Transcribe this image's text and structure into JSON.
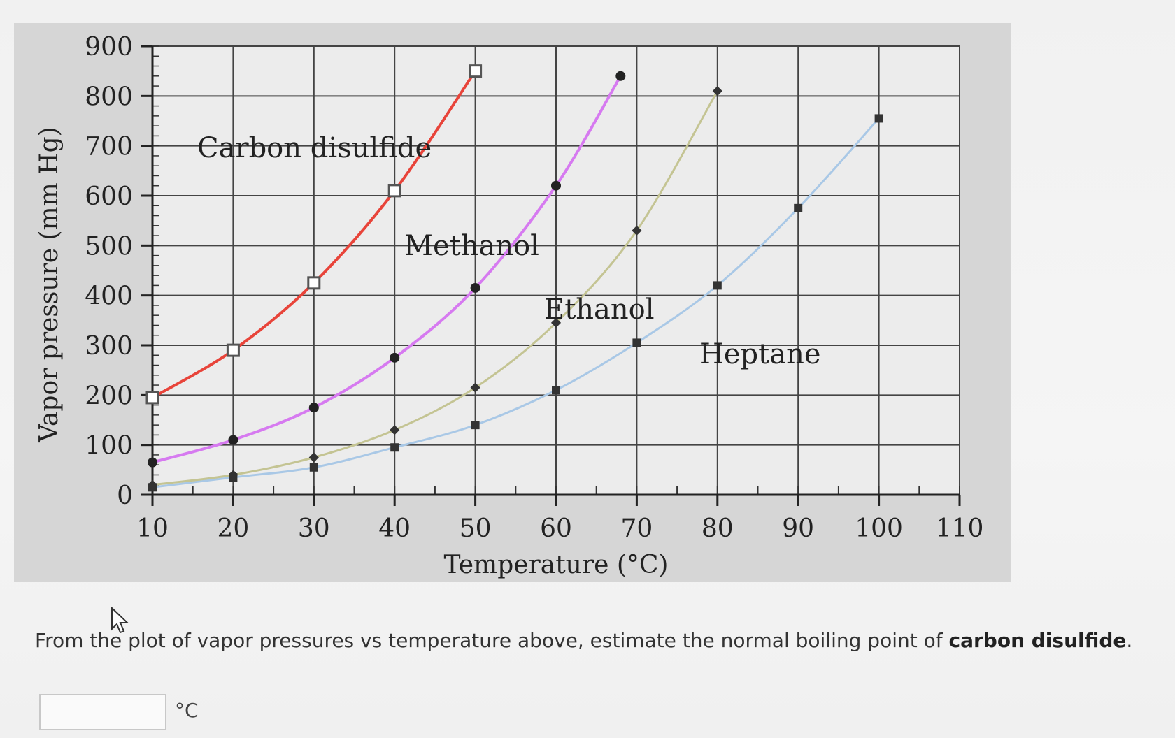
{
  "chart_data": {
    "type": "line",
    "xlabel": "Temperature (°C)",
    "ylabel": "Vapor pressure (mm Hg)",
    "xlim": [
      10,
      110
    ],
    "ylim": [
      0,
      900
    ],
    "x_ticks": [
      "10",
      "20",
      "30",
      "40",
      "50",
      "60",
      "70",
      "80",
      "90",
      "100",
      "110"
    ],
    "y_ticks": [
      "0",
      "100",
      "200",
      "300",
      "400",
      "500",
      "600",
      "700",
      "800",
      "900"
    ],
    "grid": true,
    "series": [
      {
        "name": "Carbon disulfide",
        "color": "#e8443a",
        "marker": "open-square",
        "points": [
          [
            10,
            195
          ],
          [
            20,
            290
          ],
          [
            30,
            425
          ],
          [
            40,
            610
          ],
          [
            50,
            850
          ]
        ]
      },
      {
        "name": "Methanol",
        "color": "#d67af0",
        "marker": "filled-circle",
        "points": [
          [
            10,
            65
          ],
          [
            20,
            110
          ],
          [
            30,
            175
          ],
          [
            40,
            275
          ],
          [
            50,
            415
          ],
          [
            60,
            620
          ],
          [
            68,
            840
          ]
        ]
      },
      {
        "name": "Ethanol",
        "color": "#c4c493",
        "marker": "filled-diamond",
        "points": [
          [
            10,
            20
          ],
          [
            20,
            40
          ],
          [
            30,
            75
          ],
          [
            40,
            130
          ],
          [
            50,
            215
          ],
          [
            60,
            345
          ],
          [
            70,
            530
          ],
          [
            80,
            810
          ]
        ]
      },
      {
        "name": "Heptane",
        "color": "#a9c8e6",
        "marker": "filled-square",
        "points": [
          [
            10,
            15
          ],
          [
            20,
            35
          ],
          [
            30,
            55
          ],
          [
            40,
            95
          ],
          [
            50,
            140
          ],
          [
            60,
            210
          ],
          [
            70,
            305
          ],
          [
            80,
            420
          ],
          [
            90,
            575
          ],
          [
            100,
            755
          ]
        ]
      }
    ]
  },
  "question": {
    "prefix": "From the plot of vapor pressures vs temperature above, estimate the normal boiling point of ",
    "bold": "carbon disulfide",
    "suffix": "."
  },
  "answer": {
    "value": "",
    "unit": "°C"
  }
}
